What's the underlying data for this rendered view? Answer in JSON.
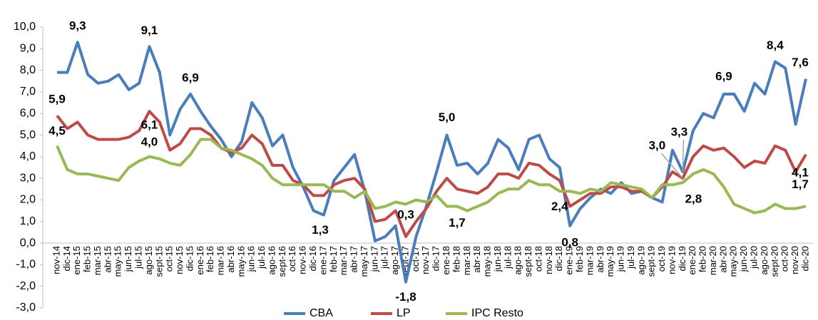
{
  "chart_data": {
    "type": "line",
    "categories": [
      "nov-14",
      "dic-14",
      "ene-15",
      "feb-15",
      "mar-15",
      "abr-15",
      "may-15",
      "jun-15",
      "jul-15",
      "ago-15",
      "sept-15",
      "oct-15",
      "nov-15",
      "dic-15",
      "ene-16",
      "feb-16",
      "mar-16",
      "abr-16",
      "may-16",
      "jun-16",
      "jul-16",
      "ago-16",
      "sept-16",
      "oct-16",
      "nov-16",
      "dic-16",
      "ene-17",
      "feb-17",
      "mar-17",
      "abr-17",
      "may-17",
      "jun-17",
      "jul-17",
      "ago-17",
      "sept-17",
      "oct-17",
      "nov-17",
      "dic-17",
      "ene-18",
      "feb-18",
      "mar-18",
      "abr-18",
      "may-18",
      "jun-18",
      "jul-18",
      "ago-18",
      "sept-18",
      "oct-18",
      "nov-18",
      "dic-18",
      "ene-19",
      "feb-19",
      "mar-19",
      "abr-19",
      "may-19",
      "jun-19",
      "jul-19",
      "ago-19",
      "sept-19",
      "oct-19",
      "nov-19",
      "dic-19",
      "ene-20",
      "feb-20",
      "mar-20",
      "abr-20",
      "may-20",
      "jun-20",
      "jul-20",
      "ago-20",
      "sept-20",
      "oct-20",
      "nov-20",
      "dic-20"
    ],
    "series": [
      {
        "name": "CBA",
        "color": "#4a7ebb",
        "values": [
          7.9,
          7.9,
          9.3,
          7.8,
          7.4,
          7.5,
          7.8,
          7.1,
          7.4,
          9.1,
          7.9,
          5.0,
          6.2,
          6.9,
          6.1,
          5.4,
          4.8,
          4.0,
          4.7,
          6.5,
          5.8,
          4.5,
          5.0,
          3.5,
          2.6,
          1.5,
          1.3,
          2.9,
          3.5,
          4.1,
          2.4,
          0.1,
          0.3,
          0.8,
          -1.8,
          0.3,
          1.7,
          3.3,
          5.0,
          3.6,
          3.7,
          3.2,
          3.7,
          4.8,
          4.4,
          3.4,
          4.8,
          5.0,
          3.9,
          3.5,
          0.8,
          1.6,
          2.1,
          2.5,
          2.3,
          2.8,
          2.3,
          2.4,
          2.1,
          1.9,
          4.3,
          3.3,
          5.2,
          6.0,
          5.8,
          6.9,
          6.9,
          6.1,
          7.4,
          6.9,
          8.4,
          8.1,
          5.5,
          7.6
        ],
        "value_labels": [
          null,
          null,
          "9,3",
          null,
          null,
          null,
          null,
          null,
          null,
          "9,1",
          null,
          null,
          null,
          "6,9",
          null,
          null,
          null,
          null,
          null,
          null,
          null,
          null,
          null,
          null,
          null,
          null,
          "1,3",
          null,
          null,
          null,
          null,
          null,
          null,
          null,
          "-1,8",
          null,
          null,
          null,
          "5,0",
          null,
          null,
          null,
          null,
          null,
          null,
          null,
          null,
          null,
          null,
          null,
          "0,8",
          null,
          null,
          null,
          null,
          null,
          null,
          null,
          null,
          null,
          null,
          "3,3",
          null,
          null,
          null,
          "6,9",
          null,
          null,
          null,
          null,
          "8,4",
          null,
          null,
          "7,6"
        ]
      },
      {
        "name": "LP",
        "color": "#be4b48",
        "values": [
          5.9,
          5.3,
          5.6,
          5.0,
          4.8,
          4.8,
          4.8,
          4.9,
          5.2,
          6.1,
          5.6,
          4.3,
          4.6,
          5.3,
          5.3,
          5.0,
          4.4,
          4.2,
          4.4,
          5.0,
          4.6,
          3.6,
          3.6,
          2.9,
          2.7,
          2.2,
          2.2,
          2.7,
          2.9,
          3.0,
          2.5,
          1.0,
          1.1,
          1.5,
          0.3,
          1.0,
          1.6,
          2.4,
          3.0,
          2.5,
          2.4,
          2.3,
          2.6,
          3.2,
          3.2,
          3.0,
          3.7,
          3.6,
          3.2,
          2.9,
          1.7,
          2.0,
          2.3,
          2.3,
          2.6,
          2.6,
          2.4,
          2.4,
          2.1,
          2.6,
          3.3,
          3.0,
          4.0,
          4.5,
          4.3,
          4.4,
          4.0,
          3.5,
          3.8,
          3.7,
          4.5,
          4.3,
          3.3,
          4.1
        ],
        "value_labels": [
          "5,9",
          null,
          null,
          null,
          null,
          null,
          null,
          null,
          null,
          "6,1",
          null,
          null,
          null,
          null,
          null,
          null,
          null,
          null,
          null,
          null,
          null,
          null,
          null,
          null,
          null,
          null,
          null,
          null,
          null,
          null,
          null,
          null,
          null,
          null,
          "0,3",
          null,
          null,
          null,
          null,
          null,
          null,
          null,
          null,
          null,
          null,
          null,
          null,
          null,
          null,
          null,
          null,
          null,
          null,
          null,
          null,
          null,
          null,
          null,
          null,
          null,
          null,
          "3,0",
          null,
          null,
          null,
          null,
          null,
          null,
          null,
          null,
          null,
          null,
          null,
          "4,1"
        ]
      },
      {
        "name": "IPC Resto",
        "color": "#98b954",
        "values": [
          4.5,
          3.4,
          3.2,
          3.2,
          3.1,
          3.0,
          2.9,
          3.5,
          3.8,
          4.0,
          3.9,
          3.7,
          3.6,
          4.1,
          4.8,
          4.8,
          4.4,
          4.3,
          4.1,
          3.9,
          3.6,
          3.0,
          2.7,
          2.7,
          2.7,
          2.7,
          2.7,
          2.4,
          2.4,
          2.1,
          2.4,
          1.6,
          1.7,
          1.9,
          1.8,
          2.0,
          1.9,
          2.2,
          1.7,
          1.7,
          1.5,
          1.7,
          1.9,
          2.3,
          2.5,
          2.5,
          2.9,
          2.7,
          2.7,
          2.4,
          2.4,
          2.3,
          2.5,
          2.4,
          2.8,
          2.7,
          2.6,
          2.5,
          2.1,
          2.7,
          2.7,
          2.8,
          3.2,
          3.4,
          3.2,
          2.6,
          1.8,
          1.6,
          1.4,
          1.5,
          1.8,
          1.6,
          1.6,
          1.7
        ],
        "value_labels": [
          "4,5",
          null,
          null,
          null,
          null,
          null,
          null,
          null,
          null,
          "4,0",
          null,
          null,
          null,
          null,
          null,
          null,
          null,
          null,
          null,
          null,
          null,
          null,
          null,
          null,
          null,
          null,
          null,
          null,
          null,
          null,
          null,
          null,
          null,
          null,
          null,
          null,
          null,
          null,
          null,
          "1,7",
          null,
          null,
          null,
          null,
          null,
          null,
          null,
          null,
          null,
          "2,4",
          null,
          null,
          null,
          null,
          null,
          null,
          null,
          null,
          null,
          null,
          null,
          "2,8",
          null,
          null,
          null,
          null,
          null,
          null,
          null,
          null,
          null,
          null,
          null,
          "1,7"
        ]
      }
    ],
    "ylim": [
      -3,
      10
    ],
    "yticks": [
      {
        "value": -3,
        "label": "-3,0"
      },
      {
        "value": -2,
        "label": "-2,0"
      },
      {
        "value": -1,
        "label": "-1,0"
      },
      {
        "value": 0,
        "label": "0,0"
      },
      {
        "value": 1,
        "label": "1,0"
      },
      {
        "value": 2,
        "label": "2,0"
      },
      {
        "value": 3,
        "label": "3,0"
      },
      {
        "value": 4,
        "label": "4,0"
      },
      {
        "value": 5,
        "label": "5,0"
      },
      {
        "value": 6,
        "label": "6,0"
      },
      {
        "value": 7,
        "label": "7,0"
      },
      {
        "value": 8,
        "label": "8,0"
      },
      {
        "value": 9,
        "label": "9,0"
      },
      {
        "value": 10,
        "label": "10,0"
      }
    ],
    "grid": false,
    "legend": "bottom"
  }
}
